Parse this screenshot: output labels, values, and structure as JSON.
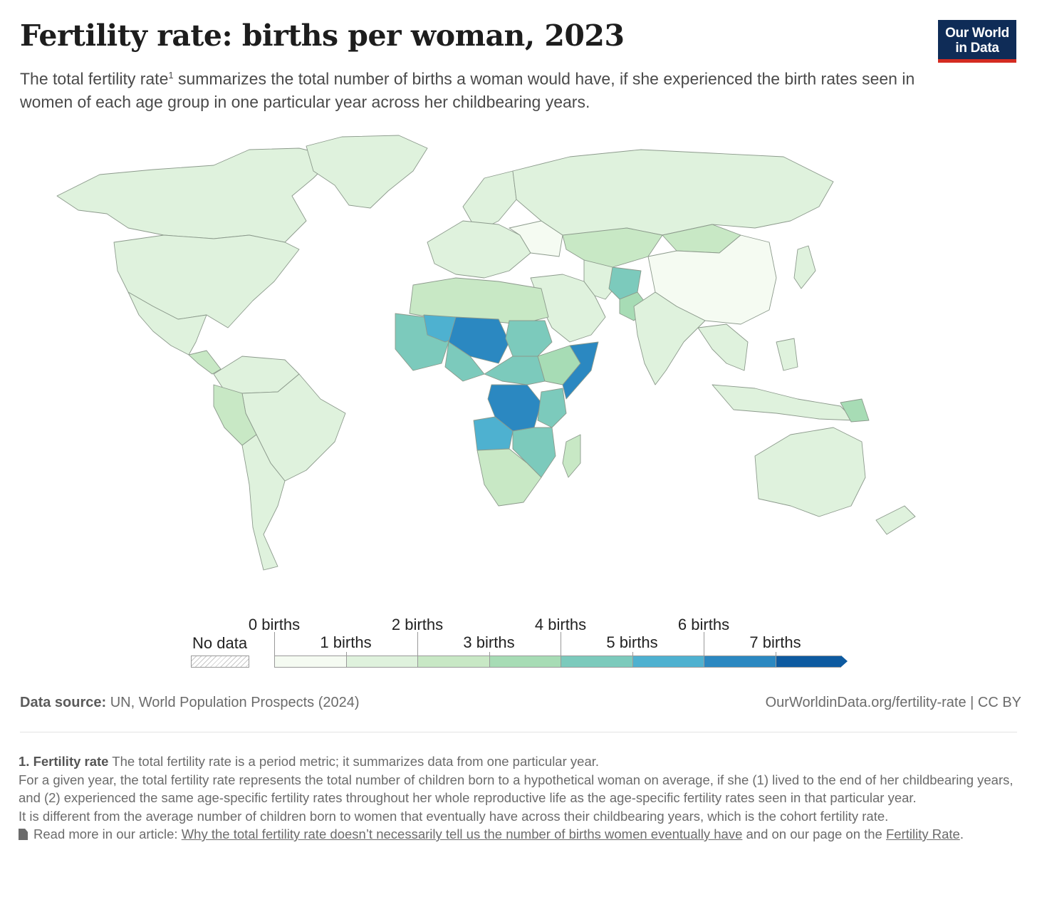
{
  "header": {
    "title": "Fertility rate: births per woman, 2023",
    "subtitle_pre": "The total fertility rate",
    "subtitle_sup": "1",
    "subtitle_post": " summarizes the total number of births a woman would have, if she experienced the birth rates seen in women of each age group in one particular year across her childbearing years.",
    "logo_line1": "Our World",
    "logo_line2": "in Data"
  },
  "legend": {
    "no_data_label": "No data",
    "bins": [
      {
        "label": "0 births",
        "value": 0,
        "color": "#f5fbf2"
      },
      {
        "label": "1 births",
        "value": 1,
        "color": "#dff2dd"
      },
      {
        "label": "2 births",
        "value": 2,
        "color": "#c8e8c5"
      },
      {
        "label": "3 births",
        "value": 3,
        "color": "#a7dcb5"
      },
      {
        "label": "4 births",
        "value": 4,
        "color": "#7ccabc"
      },
      {
        "label": "5 births",
        "value": 5,
        "color": "#4eb1d0"
      },
      {
        "label": "6 births",
        "value": 6,
        "color": "#2b88c1"
      },
      {
        "label": "7 births",
        "value": 7,
        "color": "#0d5aa0"
      }
    ]
  },
  "map_colors": {
    "ocean": "#ffffff",
    "border": "#8c9a8c",
    "low": "#f5fbf2",
    "one": "#dff2dd",
    "two": "#c8e8c5",
    "three": "#a7dcb5",
    "four": "#7ccabc",
    "five": "#4eb1d0",
    "six": "#2b88c1"
  },
  "footer": {
    "source_label": "Data source:",
    "source_text": " UN, World Population Prospects (2024)",
    "credit": "OurWorldinData.org/fertility-rate | CC BY"
  },
  "notes": {
    "n1_bold": "1. Fertility rate",
    "n1_text": " The total fertility rate is a period metric; it summarizes data from one particular year.",
    "n2": "For a given year, the total fertility rate represents the total number of children born to a hypothetical woman on average, if she (1) lived to the end of her childbearing years, and (2) experienced the same age-specific fertility rates throughout her whole reproductive life as the age-specific fertility rates seen in that particular year.",
    "n3": "It is different from the average number of children born to women that eventually have across their childbearing years, which is the cohort fertility rate.",
    "n4_pre": "Read more in our article: ",
    "n4_link1": "Why the total fertility rate doesn’t necessarily tell us the number of births women eventually have",
    "n4_mid": " and on our page on the ",
    "n4_link2": "Fertility Rate",
    "n4_end": "."
  }
}
